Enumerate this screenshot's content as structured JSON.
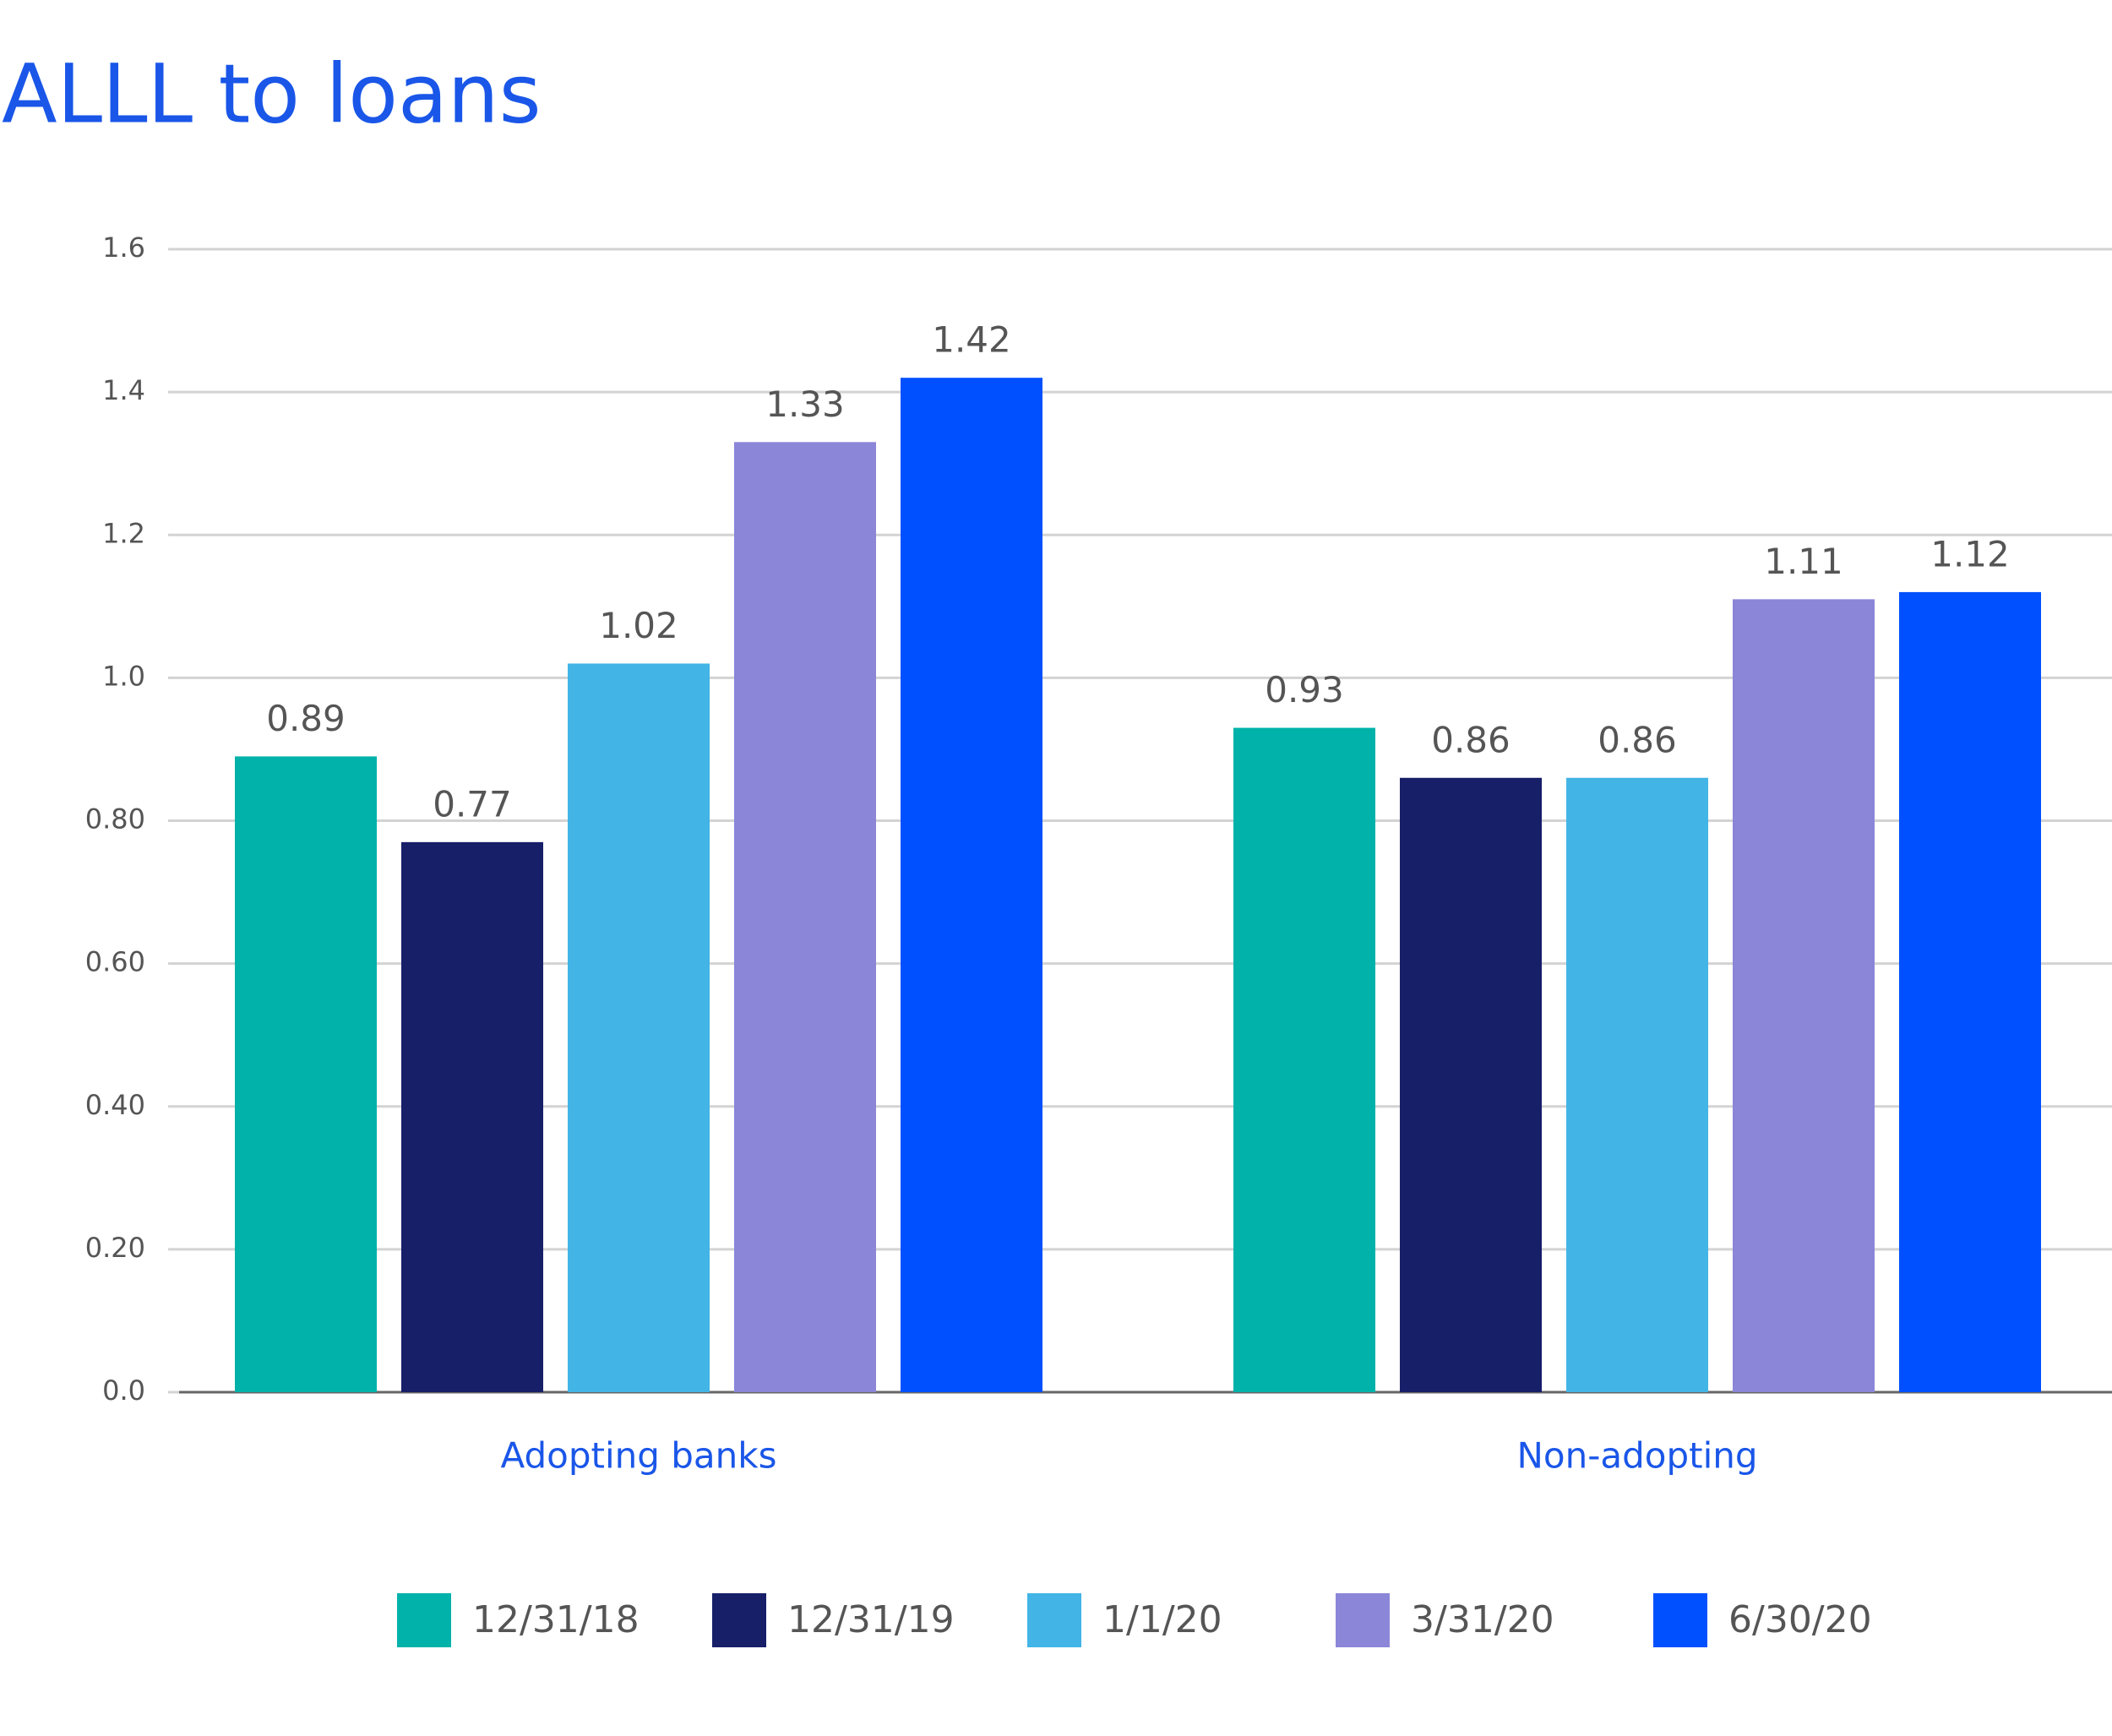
{
  "chart_data": {
    "type": "bar",
    "title": "ALLL to loans",
    "categories": [
      "Adopting banks",
      "Non-adopting"
    ],
    "series": [
      {
        "name": "12/31/18",
        "color": "#00b2a9",
        "values": [
          0.89,
          0.93
        ]
      },
      {
        "name": "12/31/19",
        "color": "#171f69",
        "values": [
          0.77,
          0.86
        ]
      },
      {
        "name": "1/1/20",
        "color": "#42b4e6",
        "values": [
          1.02,
          0.86
        ]
      },
      {
        "name": "3/31/20",
        "color": "#8b86d8",
        "values": [
          1.33,
          1.11
        ]
      },
      {
        "name": "6/30/20",
        "color": "#0050ff",
        "values": [
          1.42,
          1.12
        ]
      }
    ],
    "ylim": [
      0,
      1.6
    ],
    "yticks": [
      {
        "value": 0,
        "label": "0.0"
      },
      {
        "value": 0.2,
        "label": "0.20"
      },
      {
        "value": 0.4,
        "label": "0.40"
      },
      {
        "value": 0.6,
        "label": "0.60"
      },
      {
        "value": 0.8,
        "label": "0.80"
      },
      {
        "value": 1,
        "label": "1.0"
      },
      1.2,
      1.4,
      1.6
    ],
    "grid": true,
    "legend": "bottom"
  }
}
